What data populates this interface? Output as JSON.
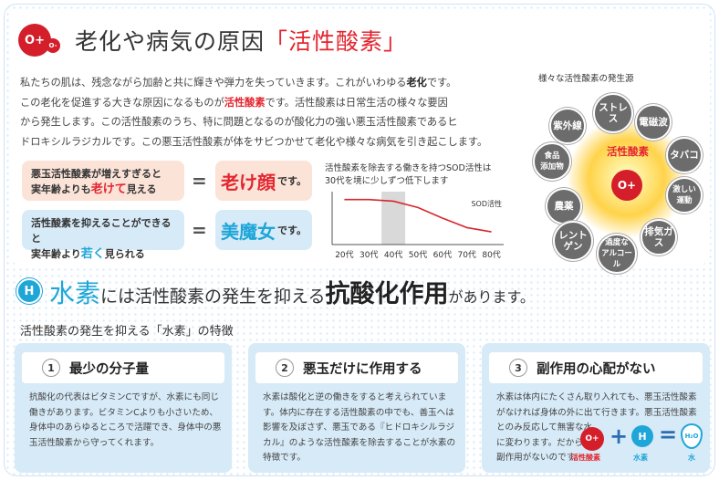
{
  "title": {
    "pre": "老化や病気の原因",
    "quote": "「活性酸素」"
  },
  "intro": {
    "l1a": "私たちの肌は、残念ながら加齢と共に輝きや弾力を失っていきます。これがいわゆる",
    "l1b": "老化",
    "l1c": "です。",
    "l2a": "この老化を促進する大きな原因になるものが",
    "l2b": "活性酸素",
    "l2c": "です。活性酸素は日常生活の様々な要因",
    "l3": "から発生します。この活性酸素のうち、特に問題となるのが酸化力の強い悪玉活性酸素であるヒ",
    "l4": "ドロキシルラジカルです。この悪玉活性酸素が体をサビつかせて老化や様々な病気を引き起こします。"
  },
  "compare": {
    "row1": {
      "a": "悪玉活性酸素が増えすぎると",
      "b1": "実年齢よりも",
      "b2": "老けて",
      "b3": "見える",
      "eq": "=",
      "res": "老け顔",
      "suffix": "です。"
    },
    "row2": {
      "a": "活性酸素を抑えることができると",
      "b1": "実年齢より",
      "b2": "若く",
      "b3": "見られる",
      "eq": "=",
      "res": "美魔女",
      "suffix": "です。"
    }
  },
  "chart_caption": {
    "l1": "活性酸素を除去する働きを持つSOD活性は",
    "l2": "30代を境に少しずつ低下します"
  },
  "chart_data": {
    "type": "line",
    "series": [
      {
        "name": "SOD活性",
        "values": [
          0.85,
          0.85,
          0.82,
          0.7,
          0.5,
          0.32,
          0.24
        ]
      }
    ],
    "categories": [
      "20代",
      "30代",
      "40代",
      "50代",
      "60代",
      "70代",
      "80代"
    ],
    "highlight": "40代"
  },
  "sources": {
    "title": "様々な活性酸素の発生源",
    "center": "活性酸素",
    "items": [
      "紫外線",
      "ストレス",
      "電磁波",
      "食品\n添加物",
      "タバコ",
      "農薬",
      "激しい\n運動",
      "レントゲン",
      "過度な\nアルコール",
      "排気ガス"
    ]
  },
  "h2": {
    "badge": "H",
    "w1": "水素",
    "w2": "には活性酸素の発生を抑える",
    "w3": "抗酸化作用",
    "w4": "があります。"
  },
  "subtitle": "活性酸素の発生を抑える「水素」の特徴",
  "cards": [
    {
      "num": "1",
      "title": "最少の分子量",
      "body": "抗酸化の代表はビタミンCですが、水素にも同じ働きがあります。ビタミンCよりも小さいため、身体中のあらゆるところで活躍でき、身体中の悪玉活性酸素から守ってくれます。"
    },
    {
      "num": "2",
      "title": "悪玉だけに作用する",
      "body": "水素は酸化と逆の働きをすると考えられています。体内に存在する活性酸素の中でも、善玉へは影響を及ぼさず、悪玉である『ヒドロキシルラジカル』のような活性酸素を除去することが水素の特徴です。"
    },
    {
      "num": "3",
      "title": "副作用の心配がない",
      "body1": "水素は体内にたくさん取り入れても、悪玉活性酸素がなければ身体の外に出て行きます。悪玉活性酸素とのみ反応して無害な水",
      "body2": "に変わります。だから",
      "body3": "副作用がないのです。"
    }
  ],
  "formula": {
    "a": "活性酸素",
    "plus": "+",
    "b": "水素",
    "eq": "=",
    "c": "水",
    "h": "H",
    "o": "O+",
    "w": "H₂O"
  },
  "colors": {
    "red": "#e3262f",
    "blue": "#1fa6d8",
    "card": "#d7eaf7"
  }
}
